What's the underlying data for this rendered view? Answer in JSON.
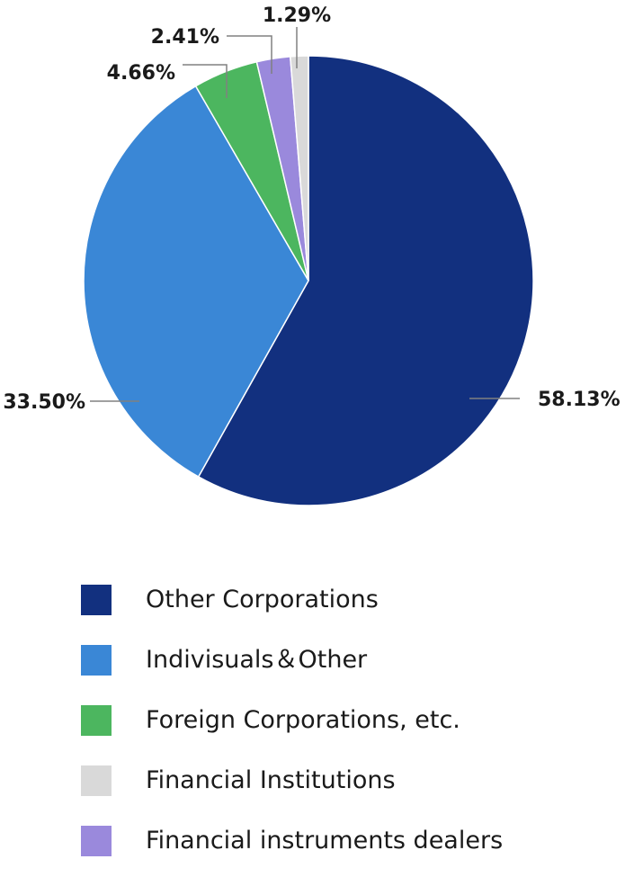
{
  "chart_data": {
    "type": "pie",
    "title": "",
    "slices": [
      {
        "label": "Other Corporations",
        "value": 58.13,
        "value_label": "58.13%",
        "color": "#12307f"
      },
      {
        "label": "Indivisuals＆Other",
        "value": 33.5,
        "value_label": "33.50%",
        "color": "#3a87d6"
      },
      {
        "label": "Foreign Corporations, etc.",
        "value": 4.66,
        "value_label": "4.66%",
        "color": "#4cb65f"
      },
      {
        "label": "Financial instruments dealers",
        "value": 2.41,
        "value_label": "2.41%",
        "color": "#9a89dc"
      },
      {
        "label": "Financial Institutions",
        "value": 1.29,
        "value_label": "1.29%",
        "color": "#d9d9d9"
      }
    ],
    "slice_order": "clockwise from top",
    "leader_line_color": "#808080"
  },
  "legend": {
    "placement": "bottom",
    "items": [
      {
        "label": "Other Corporations",
        "color": "#12307f"
      },
      {
        "label": "Indivisuals＆Other",
        "color": "#3a87d6"
      },
      {
        "label": "Foreign Corporations, etc.",
        "color": "#4cb65f"
      },
      {
        "label": "Financial Institutions",
        "color": "#d9d9d9"
      },
      {
        "label": "Financial instruments dealers",
        "color": "#9a89dc"
      }
    ]
  }
}
